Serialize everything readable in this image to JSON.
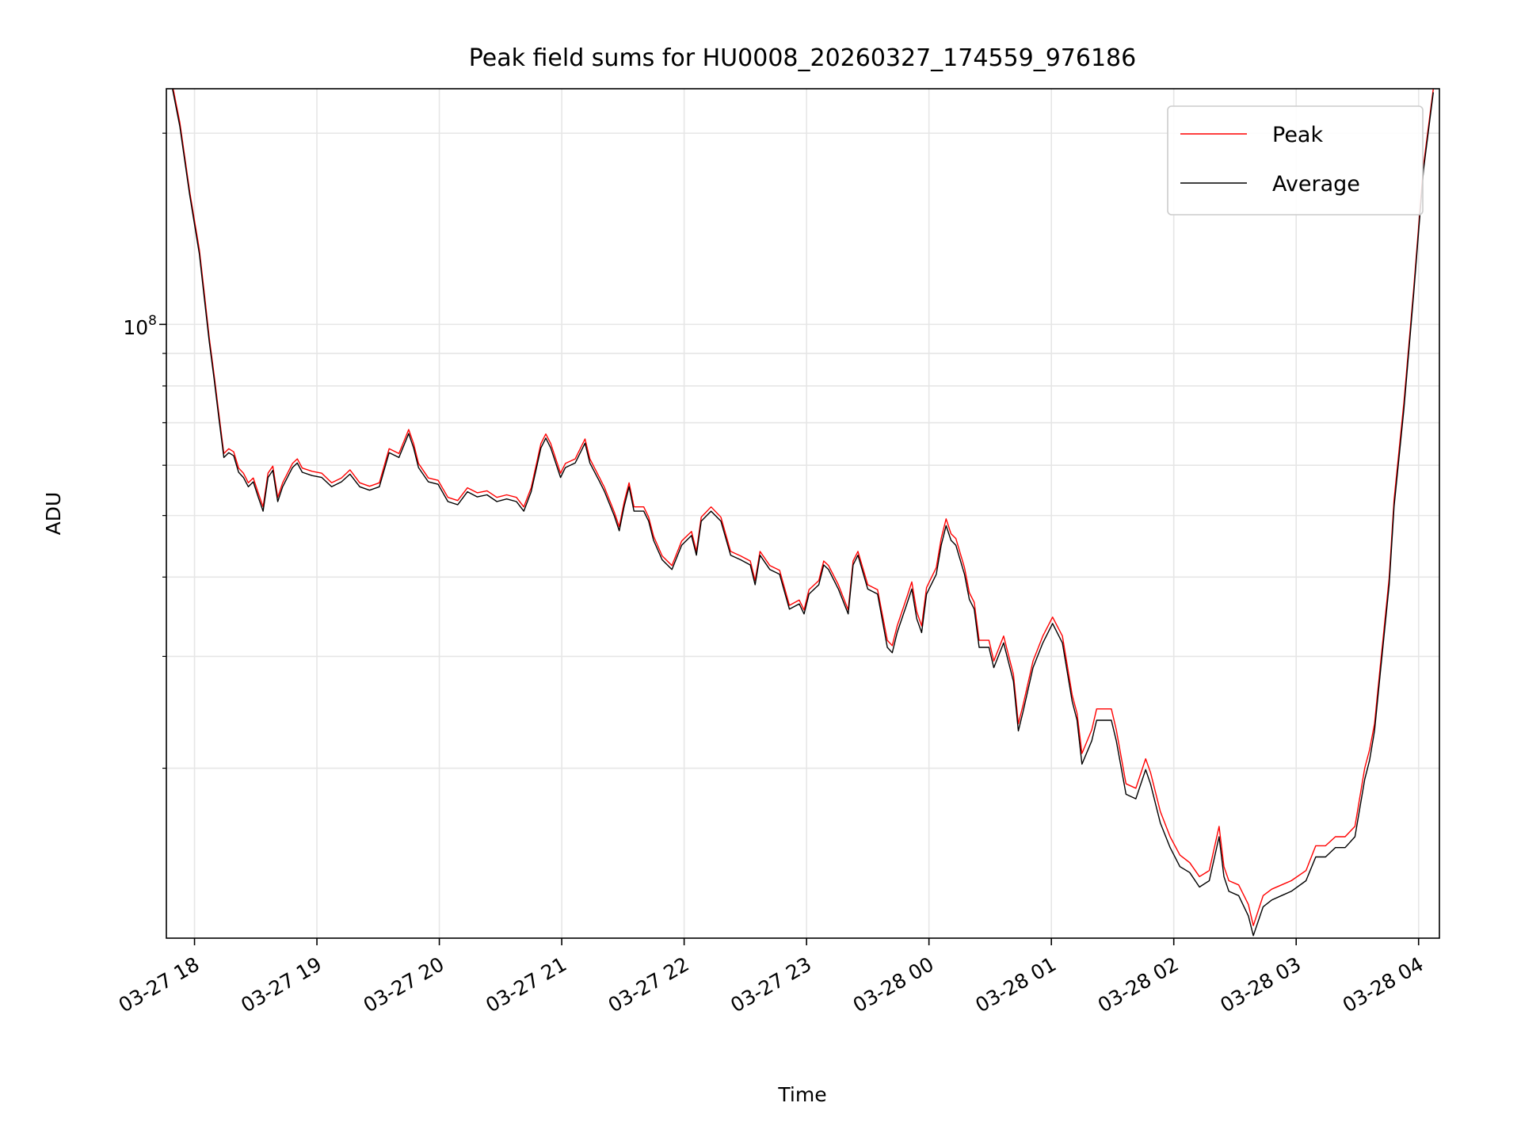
{
  "chart_data": {
    "type": "line",
    "title": "Peak field sums for HU0008_20260327_174559_976186",
    "xlabel": "Time",
    "ylabel": "ADU",
    "yscale": "log",
    "ylim": [
      10800000,
      235000000
    ],
    "xlim_hours_since_0327_0000": [
      17.77,
      28.17
    ],
    "x_unit": "hours since 03-27 00:00",
    "grid": true,
    "legend_placement": "top-right",
    "x_ticks": [
      {
        "value": 18,
        "label": "03-27 18"
      },
      {
        "value": 19,
        "label": "03-27 19"
      },
      {
        "value": 20,
        "label": "03-27 20"
      },
      {
        "value": 21,
        "label": "03-27 21"
      },
      {
        "value": 22,
        "label": "03-27 22"
      },
      {
        "value": 23,
        "label": "03-27 23"
      },
      {
        "value": 24,
        "label": "03-28 00"
      },
      {
        "value": 25,
        "label": "03-28 01"
      },
      {
        "value": 26,
        "label": "03-28 02"
      },
      {
        "value": 27,
        "label": "03-28 03"
      },
      {
        "value": 28,
        "label": "03-28 04"
      }
    ],
    "y_major_ticks": [
      {
        "value": 100000000,
        "base": "10",
        "exp": "8"
      }
    ],
    "y_minor_ticks": [
      20000000,
      30000000,
      40000000,
      50000000,
      60000000,
      70000000,
      80000000,
      90000000,
      200000000
    ],
    "x": [
      17.82,
      17.88,
      17.96,
      18.04,
      18.08,
      18.12,
      18.16,
      18.2,
      18.24,
      18.28,
      18.32,
      18.36,
      18.4,
      18.44,
      18.48,
      18.52,
      18.56,
      18.6,
      18.64,
      18.68,
      18.72,
      18.8,
      18.84,
      18.88,
      18.96,
      19.04,
      19.12,
      19.2,
      19.27,
      19.35,
      19.43,
      19.51,
      19.59,
      19.67,
      19.75,
      19.79,
      19.83,
      19.91,
      19.99,
      20.07,
      20.15,
      20.23,
      20.31,
      20.39,
      20.47,
      20.55,
      20.63,
      20.69,
      20.75,
      20.83,
      20.87,
      20.91,
      20.99,
      21.03,
      21.11,
      21.19,
      21.23,
      21.31,
      21.35,
      21.43,
      21.47,
      21.51,
      21.55,
      21.59,
      21.67,
      21.71,
      21.75,
      21.82,
      21.9,
      21.98,
      22.06,
      22.1,
      22.14,
      22.22,
      22.3,
      22.38,
      22.46,
      22.54,
      22.58,
      22.62,
      22.7,
      22.78,
      22.86,
      22.94,
      22.98,
      23.02,
      23.1,
      23.14,
      23.18,
      23.26,
      23.34,
      23.38,
      23.42,
      23.5,
      23.58,
      23.66,
      23.7,
      23.74,
      23.82,
      23.86,
      23.9,
      23.94,
      23.98,
      24.06,
      24.1,
      24.14,
      24.18,
      24.22,
      24.29,
      24.33,
      24.37,
      24.41,
      24.49,
      24.53,
      24.61,
      24.69,
      24.73,
      24.77,
      24.85,
      24.93,
      25.01,
      25.09,
      25.17,
      25.21,
      25.25,
      25.33,
      25.37,
      25.41,
      25.49,
      25.53,
      25.61,
      25.69,
      25.77,
      25.81,
      25.89,
      25.97,
      26.05,
      26.13,
      26.21,
      26.29,
      26.37,
      26.41,
      26.45,
      26.53,
      26.61,
      26.65,
      26.73,
      26.8,
      26.88,
      26.96,
      27.08,
      27.16,
      27.24,
      27.32,
      27.4,
      27.48,
      27.56,
      27.6,
      27.64,
      27.68,
      27.72,
      27.76,
      27.8,
      27.88,
      27.96,
      28.04,
      28.12
    ],
    "series": [
      {
        "name": "Peak",
        "color": "#ff0000",
        "values_millions": [
          238,
          208,
          162,
          131,
          112,
          95.4,
          83.2,
          72.1,
          62.6,
          63.7,
          63.0,
          59.4,
          58.3,
          56.3,
          57.3,
          54.3,
          51.6,
          58.3,
          59.8,
          53.4,
          56.3,
          60.4,
          61.4,
          59.4,
          58.7,
          58.3,
          56.3,
          57.3,
          59.0,
          56.3,
          55.6,
          56.3,
          63.7,
          62.6,
          68.3,
          64.9,
          60.4,
          57.3,
          56.8,
          53.4,
          52.8,
          55.3,
          54.3,
          54.7,
          53.4,
          53.9,
          53.4,
          51.6,
          55.3,
          64.9,
          67.2,
          64.9,
          58.3,
          60.4,
          61.4,
          66.0,
          61.4,
          57.3,
          55.3,
          50.6,
          48.0,
          52.5,
          56.3,
          51.6,
          51.6,
          49.7,
          46.4,
          43.2,
          41.7,
          45.6,
          47.2,
          43.9,
          49.7,
          51.6,
          49.7,
          43.9,
          43.2,
          42.4,
          39.5,
          43.9,
          41.7,
          41.0,
          36.1,
          36.8,
          35.5,
          38.2,
          39.5,
          42.4,
          41.7,
          38.9,
          35.5,
          42.4,
          43.9,
          38.9,
          38.2,
          31.8,
          31.2,
          33.5,
          37.2,
          39.3,
          35.3,
          33.5,
          38.5,
          41.4,
          46.0,
          49.4,
          46.8,
          46.0,
          41.4,
          37.8,
          36.5,
          31.8,
          31.8,
          29.5,
          32.3,
          28.1,
          23.5,
          25.2,
          29.5,
          32.3,
          34.6,
          32.3,
          26.1,
          24.4,
          21.1,
          23.0,
          24.8,
          24.8,
          24.8,
          23.0,
          18.9,
          18.6,
          20.7,
          19.7,
          17.1,
          15.6,
          14.6,
          14.2,
          13.5,
          13.8,
          16.2,
          14.0,
          13.3,
          13.1,
          12.2,
          11.3,
          12.6,
          12.9,
          13.1,
          13.3,
          13.8,
          15.1,
          15.1,
          15.6,
          15.6,
          16.2,
          20.0,
          21.4,
          23.5,
          28.1,
          33.5,
          39.9,
          53.0,
          75.4,
          114,
          178,
          235
        ]
      },
      {
        "name": "Average",
        "color": "#000000",
        "values_millions": [
          235,
          205,
          160,
          129,
          110,
          94,
          82,
          71,
          61.7,
          62.8,
          62.1,
          58.5,
          57.4,
          55.5,
          56.5,
          53.5,
          50.8,
          57.4,
          58.9,
          52.6,
          55.5,
          59.5,
          60.5,
          58.5,
          57.8,
          57.4,
          55.5,
          56.5,
          58.1,
          55.5,
          54.8,
          55.5,
          62.8,
          61.7,
          67.3,
          63.9,
          59.5,
          56.5,
          56.0,
          52.6,
          52.0,
          54.5,
          53.5,
          53.9,
          52.6,
          53.1,
          52.6,
          50.8,
          54.5,
          63.9,
          66.2,
          63.9,
          57.4,
          59.5,
          60.5,
          65.0,
          60.5,
          56.5,
          54.5,
          49.9,
          47.3,
          51.7,
          55.5,
          50.8,
          50.8,
          49.0,
          45.7,
          42.6,
          41.1,
          44.9,
          46.5,
          43.3,
          49.0,
          50.8,
          49.0,
          43.3,
          42.6,
          41.8,
          38.9,
          43.3,
          41.1,
          40.4,
          35.6,
          36.3,
          35.0,
          37.6,
          38.9,
          41.8,
          41.1,
          38.3,
          35.0,
          41.8,
          43.3,
          38.3,
          37.6,
          31.0,
          30.4,
          32.7,
          36.3,
          38.3,
          34.4,
          32.7,
          37.6,
          40.4,
          44.9,
          48.2,
          45.7,
          44.9,
          40.4,
          36.9,
          35.6,
          31.0,
          31.0,
          28.8,
          31.5,
          27.4,
          22.9,
          24.6,
          28.8,
          31.5,
          33.8,
          31.5,
          25.5,
          23.8,
          20.3,
          22.1,
          23.8,
          23.8,
          23.8,
          22.1,
          18.2,
          17.9,
          19.9,
          18.9,
          16.4,
          15.0,
          14.0,
          13.7,
          13.0,
          13.3,
          15.6,
          13.5,
          12.8,
          12.6,
          11.7,
          10.9,
          12.1,
          12.4,
          12.6,
          12.8,
          13.3,
          14.5,
          14.5,
          15.0,
          15.0,
          15.6,
          19.2,
          20.6,
          22.9,
          27.4,
          32.7,
          38.9,
          51.7,
          73.6,
          112,
          175,
          232
        ]
      }
    ]
  }
}
